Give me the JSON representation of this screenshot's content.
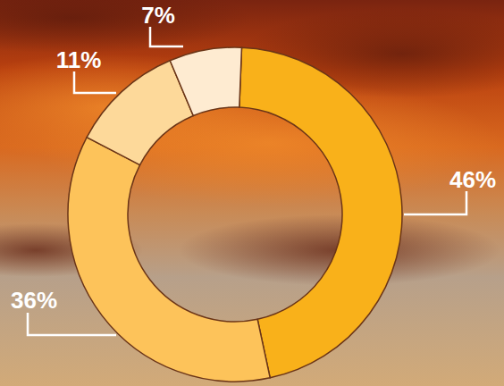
{
  "chart_data": {
    "type": "pie",
    "values": [
      46,
      36,
      11,
      7
    ],
    "value_labels": [
      "46%",
      "36%",
      "11%",
      "7%"
    ],
    "colors": [
      "#f9b11a",
      "#fdc35a",
      "#fdd99a",
      "#feebd1"
    ],
    "data_labels": true
  }
}
